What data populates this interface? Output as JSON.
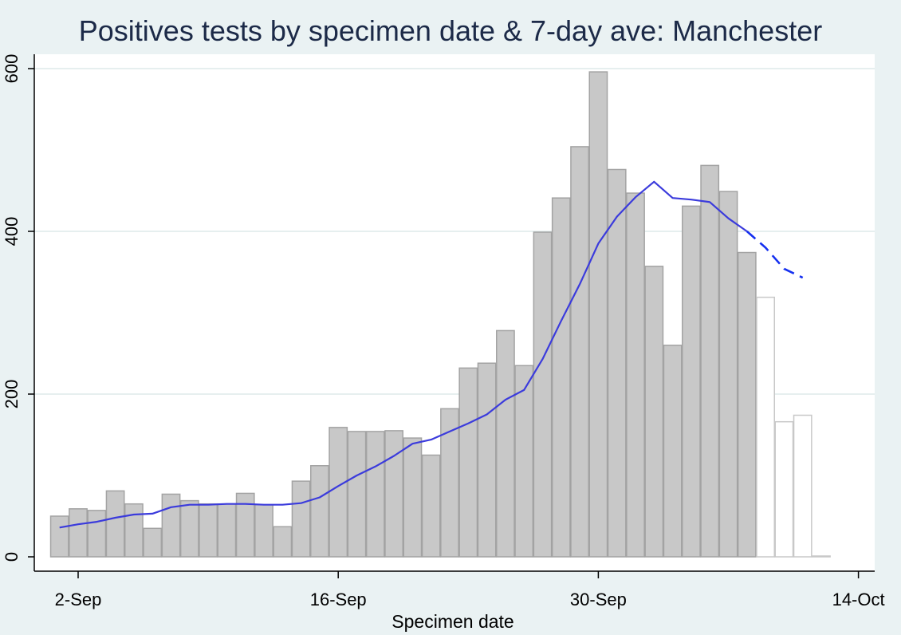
{
  "chart_data": {
    "type": "bar",
    "title": "Positives tests by specimen date & 7-day ave: Manchester",
    "xlabel": "Specimen date",
    "ylabel": "",
    "ylim": [
      0,
      600
    ],
    "yticks": [
      0,
      200,
      400,
      600
    ],
    "xticks": [
      "2-Sep",
      "16-Sep",
      "30-Sep",
      "14-Oct"
    ],
    "grid": true,
    "colors": {
      "bar": "#c8c8c8",
      "bar_outline": "#a3a3a3",
      "incomplete_bar": "#ffffff",
      "line": "#3b3bdc",
      "background": "#eaf2f3",
      "plot": "#ffffff"
    },
    "series": [
      {
        "type": "bar",
        "dates": [
          "1-Sep",
          "2-Sep",
          "3-Sep",
          "4-Sep",
          "5-Sep",
          "6-Sep",
          "7-Sep",
          "8-Sep",
          "9-Sep",
          "10-Sep",
          "11-Sep",
          "12-Sep",
          "13-Sep",
          "14-Sep",
          "15-Sep",
          "16-Sep",
          "17-Sep",
          "18-Sep",
          "19-Sep",
          "20-Sep",
          "21-Sep",
          "22-Sep",
          "23-Sep",
          "24-Sep",
          "25-Sep",
          "26-Sep",
          "27-Sep",
          "28-Sep",
          "29-Sep",
          "30-Sep",
          "1-Oct",
          "2-Oct",
          "3-Oct",
          "4-Oct",
          "5-Oct",
          "6-Oct",
          "7-Oct",
          "8-Oct",
          "9-Oct",
          "10-Oct",
          "11-Oct",
          "12-Oct"
        ],
        "values": [
          50,
          59,
          57,
          81,
          65,
          35,
          77,
          69,
          65,
          65,
          78,
          64,
          37,
          93,
          112,
          159,
          154,
          154,
          155,
          146,
          125,
          182,
          232,
          238,
          278,
          235,
          399,
          441,
          504,
          596,
          476,
          447,
          357,
          260,
          431,
          481,
          449,
          374,
          319,
          166,
          174,
          1
        ],
        "incomplete_from": "9-Oct"
      },
      {
        "type": "line",
        "dates": [
          "1-Sep",
          "2-Sep",
          "3-Sep",
          "4-Sep",
          "5-Sep",
          "6-Sep",
          "7-Sep",
          "8-Sep",
          "9-Sep",
          "10-Sep",
          "11-Sep",
          "12-Sep",
          "13-Sep",
          "14-Sep",
          "15-Sep",
          "16-Sep",
          "17-Sep",
          "18-Sep",
          "19-Sep",
          "20-Sep",
          "21-Sep",
          "22-Sep",
          "23-Sep",
          "24-Sep",
          "25-Sep",
          "26-Sep",
          "27-Sep",
          "28-Sep",
          "29-Sep",
          "30-Sep",
          "1-Oct",
          "2-Oct",
          "3-Oct",
          "4-Oct",
          "5-Oct",
          "6-Oct",
          "7-Oct",
          "8-Oct",
          "9-Oct",
          "10-Oct",
          "11-Oct"
        ],
        "values": [
          36,
          40,
          43,
          48,
          52,
          53,
          61,
          64,
          64,
          65,
          65,
          64,
          64,
          66,
          73,
          87,
          100,
          111,
          124,
          139,
          144,
          154,
          164,
          175,
          193,
          205,
          243,
          290,
          335,
          385,
          418,
          442,
          461,
          441,
          439,
          436,
          416,
          400,
          380,
          354,
          343
        ],
        "dashed_from": "8-Oct"
      }
    ]
  }
}
